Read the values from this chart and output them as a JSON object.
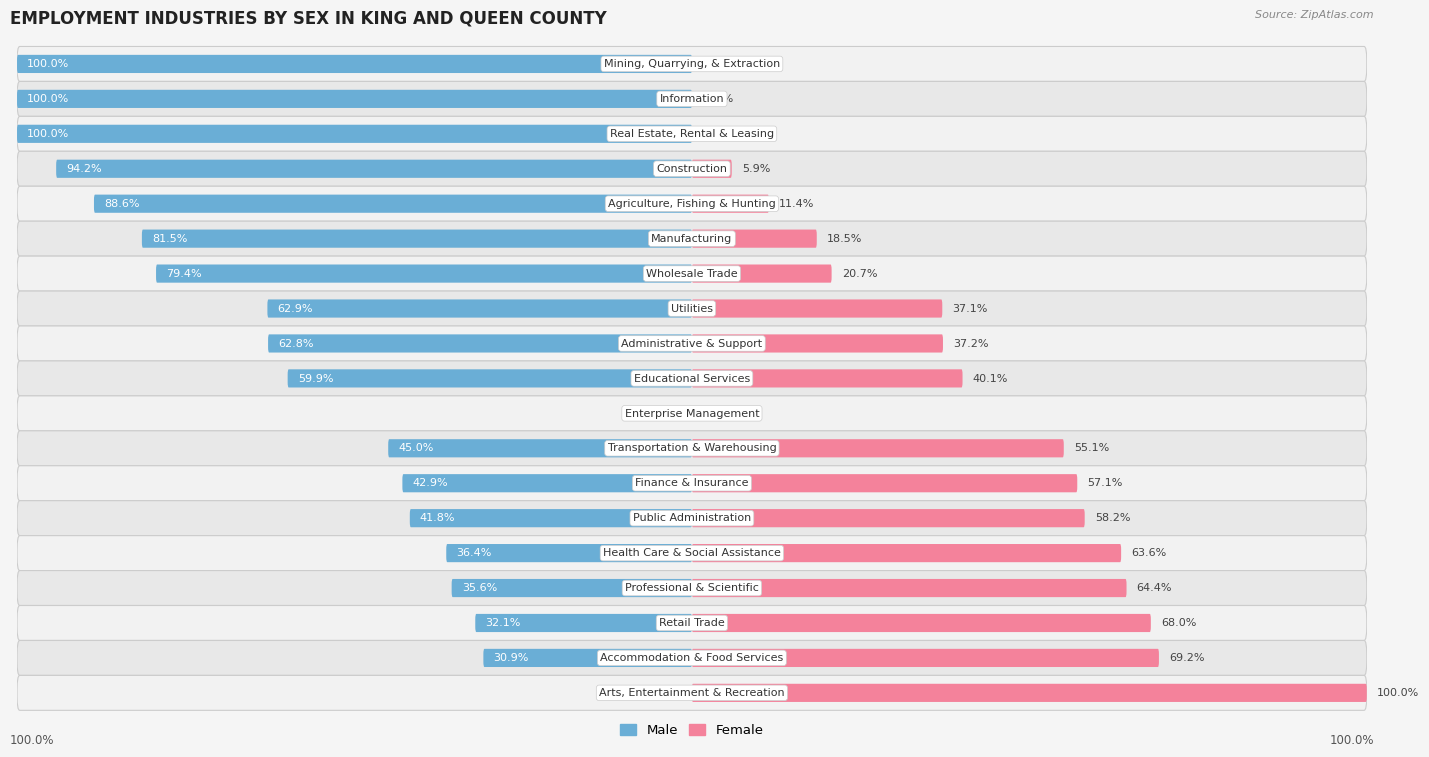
{
  "title": "EMPLOYMENT INDUSTRIES BY SEX IN KING AND QUEEN COUNTY",
  "source": "Source: ZipAtlas.com",
  "categories": [
    "Mining, Quarrying, & Extraction",
    "Information",
    "Real Estate, Rental & Leasing",
    "Construction",
    "Agriculture, Fishing & Hunting",
    "Manufacturing",
    "Wholesale Trade",
    "Utilities",
    "Administrative & Support",
    "Educational Services",
    "Enterprise Management",
    "Transportation & Warehousing",
    "Finance & Insurance",
    "Public Administration",
    "Health Care & Social Assistance",
    "Professional & Scientific",
    "Retail Trade",
    "Accommodation & Food Services",
    "Arts, Entertainment & Recreation"
  ],
  "male_pct": [
    100.0,
    100.0,
    100.0,
    94.2,
    88.6,
    81.5,
    79.4,
    62.9,
    62.8,
    59.9,
    0.0,
    45.0,
    42.9,
    41.8,
    36.4,
    35.6,
    32.1,
    30.9,
    0.0
  ],
  "female_pct": [
    0.0,
    0.0,
    0.0,
    5.9,
    11.4,
    18.5,
    20.7,
    37.1,
    37.2,
    40.1,
    0.0,
    55.1,
    57.1,
    58.2,
    63.6,
    64.4,
    68.0,
    69.2,
    100.0
  ],
  "male_color": "#6aaed6",
  "female_color": "#f4829b",
  "row_bg_light": "#f0f0f0",
  "row_bg_dark": "#e2e2e2",
  "row_border": "#d0d0d0",
  "bar_height": 0.52,
  "label_fontsize": 8.0,
  "title_fontsize": 12,
  "source_fontsize": 8.0,
  "male_label_color": "#ffffff",
  "pct_label_color": "#444444"
}
